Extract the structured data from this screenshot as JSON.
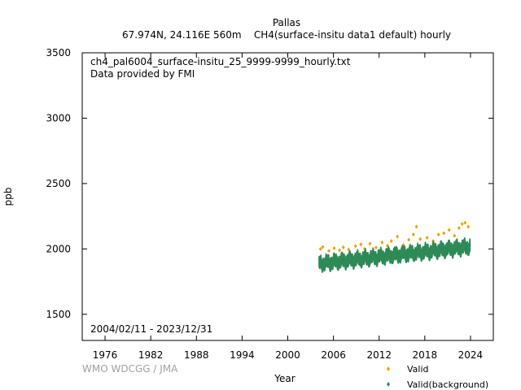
{
  "chart_data": {
    "type": "scatter",
    "title": "Pallas",
    "subtitle": "67.974N, 24.116E 560m    CH4(surface-insitu data1 default) hourly",
    "xlabel": "Year",
    "ylabel": "ppb",
    "xlim": [
      1973,
      2027
    ],
    "ylim": [
      1300,
      3500
    ],
    "x_ticks": [
      1976,
      1982,
      1988,
      1994,
      2000,
      2006,
      2012,
      2018,
      2024
    ],
    "y_ticks": [
      1500,
      2000,
      2500,
      3000,
      3500
    ],
    "grid": false,
    "legend_position": "bottom-right",
    "annotations": {
      "file": "ch4_pal6004_surface-insitu_25_9999-9999_hourly.txt",
      "provider": "Data provided by FMI",
      "period": "2004/02/11 - 2023/12/31",
      "credit": "WMO WDCGG / JMA"
    },
    "series": [
      {
        "name": "Valid",
        "color": "#f0a000",
        "marker": "diamond",
        "x": [
          2004.3,
          2004.6,
          2005.4,
          2006.1,
          2006.8,
          2007.3,
          2008.0,
          2008.9,
          2009.6,
          2010.1,
          2010.8,
          2011.6,
          2012.4,
          2013.1,
          2013.6,
          2014.4,
          2015.2,
          2015.9,
          2016.5,
          2016.9,
          2017.4,
          2018.3,
          2019.1,
          2019.8,
          2020.5,
          2021.2,
          2021.9,
          2022.5,
          2022.9,
          2023.3,
          2023.7
        ],
        "y": [
          2000,
          2015,
          1985,
          2005,
          1990,
          2012,
          1995,
          2022,
          2035,
          2000,
          2040,
          2010,
          2050,
          2025,
          2060,
          2095,
          2030,
          2070,
          2110,
          2170,
          2075,
          2085,
          2060,
          2110,
          2120,
          2145,
          2100,
          2160,
          2190,
          2200,
          2170
        ]
      },
      {
        "name": "Valid(background)",
        "color": "#2e8b57",
        "marker": "diamond",
        "x_start": 2004.1,
        "x_end": 2023.95,
        "trend_start": 1880,
        "trend_end": 2010,
        "spread_low": 35,
        "spread_high": 45
      }
    ]
  }
}
